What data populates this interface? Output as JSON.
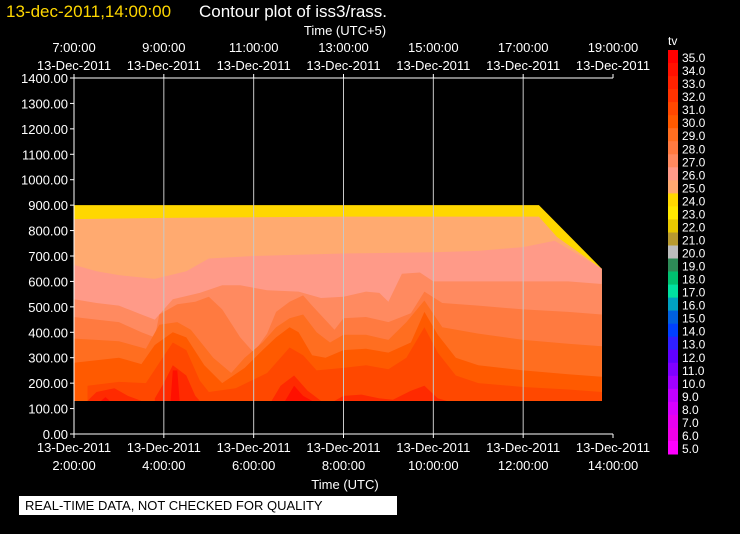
{
  "header": {
    "timestamp": "13-dec-2011,14:00:00",
    "title": "Contour plot of iss3/rass."
  },
  "notice": "REAL-TIME DATA, NOT CHECKED FOR QUALITY",
  "colors": {
    "background": "#000000",
    "timestamp": "#ffd700",
    "grid": "#c8c8c8"
  },
  "chart_data": {
    "type": "heatmap",
    "title": "Contour plot of iss3/rass.",
    "variable": "tv",
    "x_top_label": "Time (UTC+5)",
    "x_bottom_label": "Time (UTC)",
    "ylabel": "",
    "ylim": [
      0,
      1400
    ],
    "y_ticks": [
      "0.00",
      "100.00",
      "200.00",
      "300.00",
      "400.00",
      "500.00",
      "600.00",
      "700.00",
      "800.00",
      "900.00",
      "1000.00",
      "1100.00",
      "1200.00",
      "1300.00",
      "1400.00"
    ],
    "y_tick_values": [
      0,
      100,
      200,
      300,
      400,
      500,
      600,
      700,
      800,
      900,
      1000,
      1100,
      1200,
      1300,
      1400
    ],
    "xlim_hours_utc": [
      2,
      14
    ],
    "x_bottom_ticks": [
      {
        "hour": 2,
        "date": "13-Dec-2011",
        "time": "2:00:00"
      },
      {
        "hour": 4,
        "date": "13-Dec-2011",
        "time": "4:00:00"
      },
      {
        "hour": 6,
        "date": "13-Dec-2011",
        "time": "6:00:00"
      },
      {
        "hour": 8,
        "date": "13-Dec-2011",
        "time": "8:00:00"
      },
      {
        "hour": 10,
        "date": "13-Dec-2011",
        "time": "10:00:00"
      },
      {
        "hour": 12,
        "date": "13-Dec-2011",
        "time": "12:00:00"
      },
      {
        "hour": 14,
        "date": "13-Dec-2011",
        "time": "14:00:00"
      }
    ],
    "x_top_ticks": [
      {
        "hour": 2,
        "time": "7:00:00",
        "date": "13-Dec-2011"
      },
      {
        "hour": 4,
        "time": "9:00:00",
        "date": "13-Dec-2011"
      },
      {
        "hour": 6,
        "time": "11:00:00",
        "date": "13-Dec-2011"
      },
      {
        "hour": 8,
        "time": "13:00:00",
        "date": "13-Dec-2011"
      },
      {
        "hour": 10,
        "time": "15:00:00",
        "date": "13-Dec-2011"
      },
      {
        "hour": 12,
        "time": "17:00:00",
        "date": "13-Dec-2011"
      },
      {
        "hour": 14,
        "time": "19:00:00",
        "date": "13-Dec-2011"
      }
    ],
    "grid": true,
    "legend": {
      "position": "right",
      "title": "tv",
      "levels": [
        {
          "value": "35.0",
          "color": "#ff0000"
        },
        {
          "value": "34.0",
          "color": "#ff1100"
        },
        {
          "value": "33.0",
          "color": "#ff2200"
        },
        {
          "value": "32.0",
          "color": "#ff3300"
        },
        {
          "value": "31.0",
          "color": "#ff4800"
        },
        {
          "value": "30.0",
          "color": "#ff5a00"
        },
        {
          "value": "29.0",
          "color": "#ff6e20"
        },
        {
          "value": "28.0",
          "color": "#ff7a40"
        },
        {
          "value": "27.0",
          "color": "#ff8a60"
        },
        {
          "value": "26.0",
          "color": "#ff9a88"
        },
        {
          "value": "25.0",
          "color": "#ffaa70"
        },
        {
          "value": "24.0",
          "color": "#ffd800"
        },
        {
          "value": "23.0",
          "color": "#ffe800"
        },
        {
          "value": "22.0",
          "color": "#e8c800"
        },
        {
          "value": "21.0",
          "color": "#b89a30"
        },
        {
          "value": "20.0",
          "color": "#bdbdbd"
        },
        {
          "value": "19.0",
          "color": "#2e8b57"
        },
        {
          "value": "18.0",
          "color": "#00c070"
        },
        {
          "value": "17.0",
          "color": "#00e0a0"
        },
        {
          "value": "16.0",
          "color": "#00a0c0"
        },
        {
          "value": "15.0",
          "color": "#0060e0"
        },
        {
          "value": "14.0",
          "color": "#0040ff"
        },
        {
          "value": "13.0",
          "color": "#3020ff"
        },
        {
          "value": "12.0",
          "color": "#6000ff"
        },
        {
          "value": "11.0",
          "color": "#8000ff"
        },
        {
          "value": "10.0",
          "color": "#a000ff"
        },
        {
          "value": "9.0",
          "color": "#c000ff"
        },
        {
          "value": "8.0",
          "color": "#d800ff"
        },
        {
          "value": "7.0",
          "color": "#e800f0"
        },
        {
          "value": "6.0",
          "color": "#f000e8"
        },
        {
          "value": "5.0",
          "color": "#ff00ff"
        }
      ]
    },
    "contours": [
      {
        "level": "24.0",
        "color": "#ffd700",
        "points": [
          [
            2,
            900
          ],
          [
            12.35,
            900
          ],
          [
            13.75,
            650
          ],
          [
            13.75,
            130
          ],
          [
            2,
            130
          ]
        ]
      },
      {
        "level": "25.0",
        "color": "#ffaa70",
        "points": [
          [
            2,
            845
          ],
          [
            4,
            850
          ],
          [
            8,
            855
          ],
          [
            12.35,
            855
          ],
          [
            12.75,
            775
          ],
          [
            13.75,
            650
          ],
          [
            13.75,
            130
          ],
          [
            2,
            130
          ]
        ]
      },
      {
        "level": "26.0",
        "color": "#ff9a88",
        "points": [
          [
            2,
            665
          ],
          [
            2.5,
            640
          ],
          [
            3,
            625
          ],
          [
            3.8,
            610
          ],
          [
            4.5,
            640
          ],
          [
            5,
            690
          ],
          [
            6,
            700
          ],
          [
            7,
            705
          ],
          [
            8,
            710
          ],
          [
            9,
            712
          ],
          [
            10,
            715
          ],
          [
            11,
            720
          ],
          [
            12,
            735
          ],
          [
            12.7,
            760
          ],
          [
            13.75,
            650
          ],
          [
            13.75,
            130
          ],
          [
            2,
            130
          ]
        ]
      },
      {
        "level": "27.0",
        "color": "#ff8a60",
        "points": [
          [
            2,
            530
          ],
          [
            2.5,
            515
          ],
          [
            3,
            505
          ],
          [
            3.5,
            470
          ],
          [
            3.8,
            450
          ],
          [
            4.2,
            530
          ],
          [
            4.8,
            555
          ],
          [
            5.3,
            585
          ],
          [
            5.7,
            585
          ],
          [
            6.3,
            565
          ],
          [
            7,
            560
          ],
          [
            7.5,
            535
          ],
          [
            8,
            540
          ],
          [
            8.5,
            560
          ],
          [
            8.8,
            555
          ],
          [
            9,
            520
          ],
          [
            9.3,
            630
          ],
          [
            9.7,
            635
          ],
          [
            10,
            600
          ],
          [
            11,
            600
          ],
          [
            12,
            600
          ],
          [
            13,
            600
          ],
          [
            13.75,
            590
          ],
          [
            13.75,
            130
          ],
          [
            2,
            130
          ]
        ]
      },
      {
        "level": "28.0",
        "color": "#ff7a40",
        "points": [
          [
            2,
            460
          ],
          [
            2.5,
            450
          ],
          [
            3,
            440
          ],
          [
            3.5,
            400
          ],
          [
            3.8,
            380
          ],
          [
            3.9,
            470
          ],
          [
            4.3,
            510
          ],
          [
            4.7,
            520
          ],
          [
            5,
            540
          ],
          [
            5.3,
            490
          ],
          [
            5.7,
            380
          ],
          [
            6,
            320
          ],
          [
            6.3,
            395
          ],
          [
            6.5,
            480
          ],
          [
            6.8,
            520
          ],
          [
            7.1,
            545
          ],
          [
            7.3,
            505
          ],
          [
            7.8,
            410
          ],
          [
            8,
            455
          ],
          [
            8.5,
            460
          ],
          [
            9,
            440
          ],
          [
            9.5,
            475
          ],
          [
            9.8,
            560
          ],
          [
            10.2,
            515
          ],
          [
            11,
            505
          ],
          [
            12,
            490
          ],
          [
            13,
            480
          ],
          [
            13.75,
            470
          ],
          [
            13.75,
            130
          ],
          [
            2,
            130
          ]
        ]
      },
      {
        "level": "29.0",
        "color": "#ff6e20",
        "points": [
          [
            2,
            375
          ],
          [
            2.5,
            370
          ],
          [
            3,
            365
          ],
          [
            3.6,
            335
          ],
          [
            3.9,
            430
          ],
          [
            4.3,
            440
          ],
          [
            4.6,
            410
          ],
          [
            5.1,
            300
          ],
          [
            5.5,
            240
          ],
          [
            5.8,
            300
          ],
          [
            6.2,
            360
          ],
          [
            6.5,
            420
          ],
          [
            6.8,
            455
          ],
          [
            7.1,
            470
          ],
          [
            7.4,
            400
          ],
          [
            7.7,
            360
          ],
          [
            8,
            390
          ],
          [
            8.5,
            390
          ],
          [
            9,
            370
          ],
          [
            9.4,
            440
          ],
          [
            9.8,
            525
          ],
          [
            10.2,
            420
          ],
          [
            11,
            395
          ],
          [
            12,
            370
          ],
          [
            13,
            355
          ],
          [
            13.75,
            345
          ],
          [
            13.75,
            130
          ],
          [
            2,
            130
          ]
        ]
      },
      {
        "level": "30.0",
        "color": "#ff5a00",
        "points": [
          [
            2,
            280
          ],
          [
            3,
            300
          ],
          [
            3.5,
            275
          ],
          [
            3.8,
            350
          ],
          [
            4.2,
            400
          ],
          [
            4.5,
            380
          ],
          [
            4.9,
            270
          ],
          [
            5.3,
            200
          ],
          [
            5.8,
            260
          ],
          [
            6.2,
            330
          ],
          [
            6.5,
            380
          ],
          [
            6.8,
            420
          ],
          [
            7,
            400
          ],
          [
            7.3,
            310
          ],
          [
            7.6,
            300
          ],
          [
            8,
            330
          ],
          [
            8.5,
            335
          ],
          [
            9,
            320
          ],
          [
            9.5,
            360
          ],
          [
            9.8,
            480
          ],
          [
            10.1,
            390
          ],
          [
            10.5,
            300
          ],
          [
            11,
            270
          ],
          [
            12,
            250
          ],
          [
            13,
            235
          ],
          [
            13.75,
            225
          ],
          [
            13.75,
            130
          ],
          [
            2,
            130
          ]
        ]
      },
      {
        "level": "31.0",
        "color": "#ff4800",
        "points": [
          [
            2.3,
            190
          ],
          [
            3,
            205
          ],
          [
            3.6,
            200
          ],
          [
            3.9,
            280
          ],
          [
            4.2,
            360
          ],
          [
            4.5,
            330
          ],
          [
            4.8,
            210
          ],
          [
            5,
            165
          ],
          [
            5.6,
            180
          ],
          [
            6.3,
            240
          ],
          [
            6.6,
            300
          ],
          [
            6.8,
            340
          ],
          [
            7.1,
            310
          ],
          [
            7.4,
            250
          ],
          [
            8,
            260
          ],
          [
            8.5,
            270
          ],
          [
            9,
            255
          ],
          [
            9.4,
            300
          ],
          [
            9.8,
            420
          ],
          [
            10.1,
            320
          ],
          [
            10.5,
            230
          ],
          [
            11,
            200
          ],
          [
            12,
            185
          ],
          [
            13,
            175
          ],
          [
            13.75,
            165
          ],
          [
            13.75,
            130
          ],
          [
            2.3,
            130
          ]
        ]
      },
      {
        "level": "32.0",
        "color": "#ff2a00",
        "points": [
          [
            3.8,
            140
          ],
          [
            4,
            200
          ],
          [
            4.2,
            270
          ],
          [
            4.5,
            230
          ],
          [
            4.7,
            150
          ],
          [
            4.8,
            130
          ],
          [
            3.8,
            130
          ]
        ]
      },
      {
        "level": "32.0",
        "color": "#ff2a00",
        "points": [
          [
            6.4,
            130
          ],
          [
            6.6,
            190
          ],
          [
            6.9,
            230
          ],
          [
            7.2,
            170
          ],
          [
            7.5,
            130
          ]
        ]
      },
      {
        "level": "32.0",
        "color": "#ff2a00",
        "points": [
          [
            7.8,
            130
          ],
          [
            8,
            150
          ],
          [
            8.4,
            155
          ],
          [
            8.8,
            140
          ],
          [
            9.1,
            135
          ],
          [
            9.5,
            170
          ],
          [
            9.8,
            190
          ],
          [
            10.1,
            140
          ],
          [
            10.3,
            130
          ]
        ]
      },
      {
        "level": "32.0",
        "color": "#ff2a00",
        "points": [
          [
            2.3,
            130
          ],
          [
            2.5,
            165
          ],
          [
            2.9,
            180
          ],
          [
            3.2,
            150
          ],
          [
            3.5,
            130
          ]
        ]
      },
      {
        "level": "33.0",
        "color": "#ff1000",
        "points": [
          [
            4.15,
            130
          ],
          [
            4.2,
            250
          ],
          [
            4.3,
            250
          ],
          [
            4.35,
            130
          ]
        ]
      },
      {
        "level": "33.0",
        "color": "#ff1000",
        "points": [
          [
            6.7,
            130
          ],
          [
            6.9,
            190
          ],
          [
            7.1,
            150
          ],
          [
            7.3,
            130
          ]
        ]
      },
      {
        "level": "33.0",
        "color": "#ff1000",
        "points": [
          [
            2.6,
            130
          ],
          [
            2.7,
            145
          ],
          [
            2.8,
            130
          ]
        ]
      }
    ]
  }
}
